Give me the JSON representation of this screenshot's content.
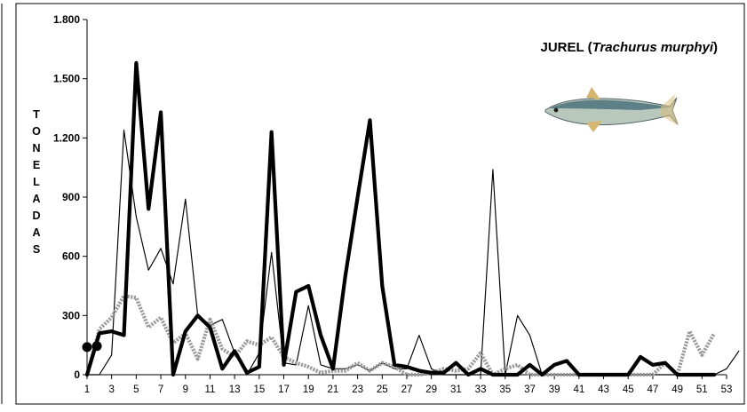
{
  "chart_data": {
    "type": "line",
    "title_prefix": "JUREL (",
    "title_italic": "Trachurus murphyi",
    "title_suffix": ")",
    "ylabel_letters": [
      "T",
      "O",
      "N",
      "E",
      "L",
      "A",
      "D",
      "A",
      "S"
    ],
    "ylim": [
      0,
      1800
    ],
    "yticks": [
      0,
      300,
      600,
      900,
      1200,
      1500,
      1800
    ],
    "ytick_labels": [
      "0",
      "300",
      "600",
      "900",
      "1.200",
      "1.500",
      "1.800"
    ],
    "xlim": [
      1,
      53
    ],
    "xticks": [
      1,
      3,
      5,
      7,
      9,
      11,
      13,
      15,
      17,
      19,
      21,
      23,
      25,
      27,
      29,
      31,
      33,
      35,
      37,
      39,
      41,
      43,
      45,
      47,
      49,
      51,
      53
    ],
    "grid": false,
    "legend": "none",
    "series": [
      {
        "style": "thin",
        "color": "#000000",
        "values": [
          0,
          0,
          100,
          1240,
          800,
          530,
          640,
          460,
          890,
          300,
          250,
          280,
          110,
          0,
          110,
          620,
          60,
          50,
          350,
          50,
          30,
          30,
          50,
          20,
          60,
          30,
          30,
          200,
          30,
          0,
          0,
          0,
          0,
          1040,
          0,
          300,
          200,
          0,
          0,
          0,
          0,
          0,
          0,
          0,
          0,
          0,
          0,
          0,
          0,
          0,
          0,
          0,
          30,
          120
        ]
      },
      {
        "style": "thick",
        "color": "#000000",
        "values": [
          0,
          210,
          220,
          200,
          1580,
          840,
          1330,
          0,
          220,
          300,
          240,
          30,
          120,
          10,
          40,
          1230,
          50,
          420,
          450,
          200,
          30,
          500,
          900,
          1290,
          450,
          50,
          40,
          20,
          10,
          10,
          60,
          0,
          30,
          0,
          0,
          0,
          50,
          0,
          50,
          70,
          0,
          0,
          0,
          0,
          0,
          90,
          50,
          60,
          0,
          0,
          0,
          0
        ]
      },
      {
        "style": "gray",
        "color": "#9a9a9a",
        "values": [
          0,
          230,
          290,
          400,
          390,
          240,
          290,
          160,
          210,
          80,
          280,
          130,
          90,
          170,
          150,
          190,
          90,
          60,
          40,
          10,
          20,
          20,
          60,
          20,
          60,
          40,
          0,
          0,
          10,
          30,
          20,
          30,
          110,
          0,
          30,
          50,
          0,
          0,
          0,
          0,
          0,
          0,
          0,
          0,
          0,
          0,
          0,
          60,
          0,
          220,
          100,
          210
        ]
      }
    ],
    "marker_points": [
      {
        "x": 1,
        "y": 140
      },
      {
        "x": 1.8,
        "y": 145
      }
    ]
  }
}
